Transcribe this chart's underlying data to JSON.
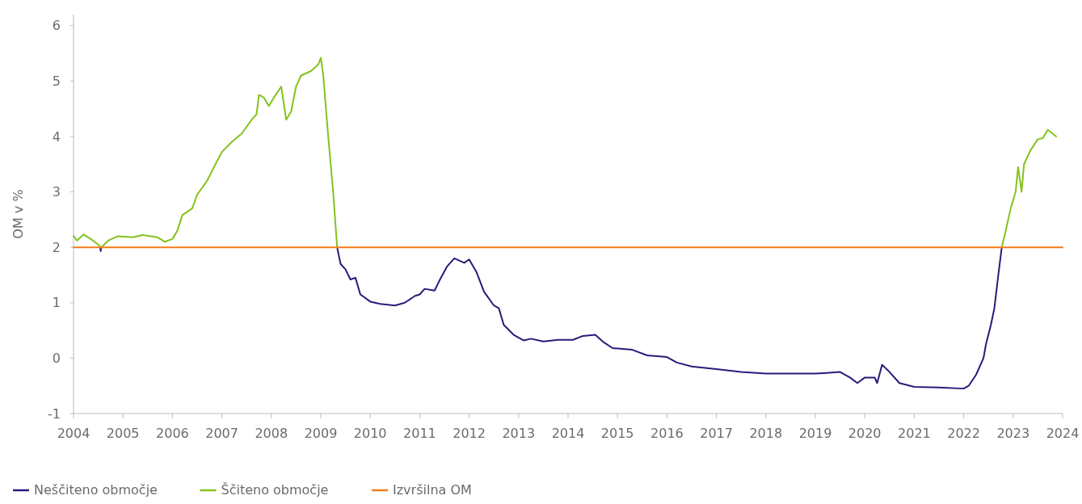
{
  "chart_data": {
    "type": "line",
    "ylabel": "OM v %",
    "xlim": [
      2004,
      2024
    ],
    "xticks": [
      2004,
      2005,
      2006,
      2007,
      2008,
      2009,
      2010,
      2011,
      2012,
      2013,
      2014,
      2015,
      2016,
      2017,
      2018,
      2019,
      2020,
      2021,
      2022,
      2023,
      2024
    ],
    "ylim": [
      -1,
      6.2
    ],
    "yticks": [
      -1,
      0,
      1,
      2,
      3,
      4,
      5,
      6
    ],
    "grid": false,
    "legend": "bottom",
    "line_style": "solid",
    "marker": "none",
    "series": [
      {
        "name": "Neščiteno območje",
        "color": "#2b1a7a",
        "x": [
          2004.54,
          2004.55,
          2004.56,
          2006.0,
          2009.33,
          2009.4,
          2009.5,
          2009.6,
          2009.7,
          2009.8,
          2010.0,
          2010.2,
          2010.5,
          2010.7,
          2010.9,
          2011.0,
          2011.1,
          2011.3,
          2011.4,
          2011.55,
          2011.7,
          2011.9,
          2012.0,
          2012.15,
          2012.3,
          2012.5,
          2012.6,
          2012.7,
          2012.9,
          2013.1,
          2013.25,
          2013.5,
          2013.8,
          2014.1,
          2014.3,
          2014.55,
          2014.7,
          2014.9,
          2015.3,
          2015.6,
          2016.0,
          2016.2,
          2016.5,
          2017.0,
          2017.5,
          2018.0,
          2019.0,
          2019.5,
          2019.7,
          2019.85,
          2020.0,
          2020.2,
          2020.25,
          2020.35,
          2020.5,
          2020.7,
          2021.0,
          2021.5,
          2022.0,
          2022.1,
          2022.25,
          2022.4,
          2022.45,
          2022.55,
          2022.62,
          2022.7,
          2022.77
        ],
        "values": [
          2.0,
          1.93,
          2.0,
          null,
          2.0,
          1.7,
          1.6,
          1.42,
          1.45,
          1.15,
          1.02,
          0.98,
          0.95,
          1.0,
          1.12,
          1.15,
          1.25,
          1.22,
          1.4,
          1.65,
          1.8,
          1.72,
          1.78,
          1.55,
          1.2,
          0.95,
          0.9,
          0.6,
          0.42,
          0.32,
          0.35,
          0.3,
          0.33,
          0.33,
          0.4,
          0.42,
          0.3,
          0.18,
          0.15,
          0.05,
          0.02,
          -0.08,
          -0.15,
          -0.2,
          -0.25,
          -0.28,
          -0.28,
          -0.25,
          -0.35,
          -0.45,
          -0.35,
          -0.35,
          -0.45,
          -0.12,
          -0.25,
          -0.45,
          -0.52,
          -0.53,
          -0.55,
          -0.5,
          -0.3,
          0.0,
          0.25,
          0.6,
          0.9,
          1.5,
          2.0
        ]
      },
      {
        "name": "Ščiteno območje",
        "color": "#84c21c",
        "x": [
          2004.0,
          2004.07,
          2004.2,
          2004.35,
          2004.5,
          2004.54,
          2004.55,
          2004.56,
          2004.7,
          2004.9,
          2005.2,
          2005.4,
          2005.7,
          2005.85,
          2006.0,
          2006.1,
          2006.2,
          2006.4,
          2006.5,
          2006.7,
          2006.9,
          2007.0,
          2007.2,
          2007.4,
          2007.6,
          2007.7,
          2007.75,
          2007.85,
          2007.95,
          2008.05,
          2008.2,
          2008.3,
          2008.4,
          2008.5,
          2008.6,
          2008.8,
          2008.95,
          2009.0,
          2009.05,
          2009.15,
          2009.25,
          2009.33,
          2022.76,
          2022.77,
          2022.85,
          2022.95,
          2023.05,
          2023.1,
          2023.17,
          2023.22,
          2023.35,
          2023.5,
          2023.6,
          2023.7,
          2023.8,
          2023.87
        ],
        "values": [
          2.2,
          2.12,
          2.23,
          2.15,
          2.05,
          2.0,
          null,
          2.0,
          2.12,
          2.2,
          2.18,
          2.22,
          2.18,
          2.1,
          2.15,
          2.3,
          2.58,
          2.7,
          2.95,
          3.2,
          3.55,
          3.72,
          3.9,
          4.05,
          4.3,
          4.4,
          4.75,
          4.7,
          4.55,
          4.7,
          4.9,
          4.3,
          4.45,
          4.9,
          5.1,
          5.18,
          5.3,
          5.42,
          5.1,
          4.0,
          3.0,
          2.0,
          null,
          2.0,
          2.3,
          2.7,
          3.0,
          3.45,
          3.0,
          3.5,
          3.75,
          3.95,
          3.97,
          4.12,
          4.05,
          4.0
        ]
      },
      {
        "name": "Izvršilna OM",
        "color": "#f07c1a",
        "x": [
          2004,
          2024
        ],
        "values": [
          2,
          2
        ]
      }
    ]
  }
}
